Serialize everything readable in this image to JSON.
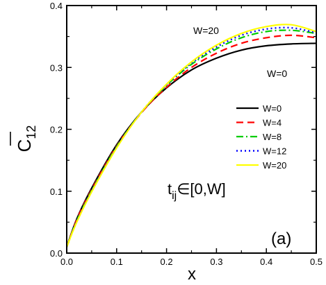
{
  "chart_data": {
    "type": "line",
    "xlabel": "x",
    "ylabel": {
      "base": "C",
      "subscript": "12"
    },
    "xlim": [
      0,
      0.5
    ],
    "ylim": [
      0,
      0.4
    ],
    "xticks": [
      "0.0",
      "0.1",
      "0.2",
      "0.3",
      "0.4",
      "0.5"
    ],
    "yticks": [
      "0.0",
      "0.1",
      "0.2",
      "0.3",
      "0.4"
    ],
    "grid": false,
    "legend_position": "right",
    "annotations": {
      "top_curve": "W=20",
      "bottom_curve": "W=0",
      "range": {
        "base": "t",
        "subscript": "ij",
        "rest": "∈[0,W]"
      },
      "panel": "(a)"
    },
    "series": [
      {
        "name": "W=0",
        "color": "#000000",
        "dash": "solid",
        "x": [
          0.0,
          0.02,
          0.05,
          0.1,
          0.15,
          0.2,
          0.25,
          0.3,
          0.35,
          0.4,
          0.45,
          0.5
        ],
        "y": [
          0.01,
          0.055,
          0.105,
          0.175,
          0.228,
          0.267,
          0.296,
          0.315,
          0.328,
          0.335,
          0.338,
          0.339
        ]
      },
      {
        "name": "W=4",
        "color": "#ff0000",
        "dash": "dashed",
        "x": [
          0.0,
          0.02,
          0.05,
          0.1,
          0.15,
          0.2,
          0.25,
          0.3,
          0.35,
          0.4,
          0.45,
          0.5
        ],
        "y": [
          0.01,
          0.054,
          0.103,
          0.173,
          0.227,
          0.268,
          0.3,
          0.323,
          0.339,
          0.348,
          0.352,
          0.348
        ]
      },
      {
        "name": "W=8",
        "color": "#00cc00",
        "dash": "dashdot",
        "x": [
          0.0,
          0.02,
          0.05,
          0.1,
          0.15,
          0.2,
          0.25,
          0.3,
          0.35,
          0.4,
          0.45,
          0.5
        ],
        "y": [
          0.01,
          0.052,
          0.101,
          0.172,
          0.228,
          0.271,
          0.305,
          0.33,
          0.348,
          0.358,
          0.36,
          0.355
        ]
      },
      {
        "name": "W=12",
        "color": "#0000ff",
        "dash": "dotted",
        "x": [
          0.0,
          0.02,
          0.05,
          0.1,
          0.15,
          0.2,
          0.25,
          0.3,
          0.35,
          0.4,
          0.45,
          0.5
        ],
        "y": [
          0.01,
          0.051,
          0.1,
          0.171,
          0.228,
          0.272,
          0.307,
          0.333,
          0.352,
          0.362,
          0.364,
          0.356
        ]
      },
      {
        "name": "W=20",
        "color": "#ffff00",
        "dash": "solid",
        "x": [
          0.0,
          0.02,
          0.05,
          0.1,
          0.15,
          0.2,
          0.25,
          0.3,
          0.35,
          0.4,
          0.45,
          0.5
        ],
        "y": [
          0.01,
          0.05,
          0.099,
          0.17,
          0.228,
          0.273,
          0.309,
          0.336,
          0.355,
          0.366,
          0.369,
          0.358
        ]
      }
    ]
  }
}
